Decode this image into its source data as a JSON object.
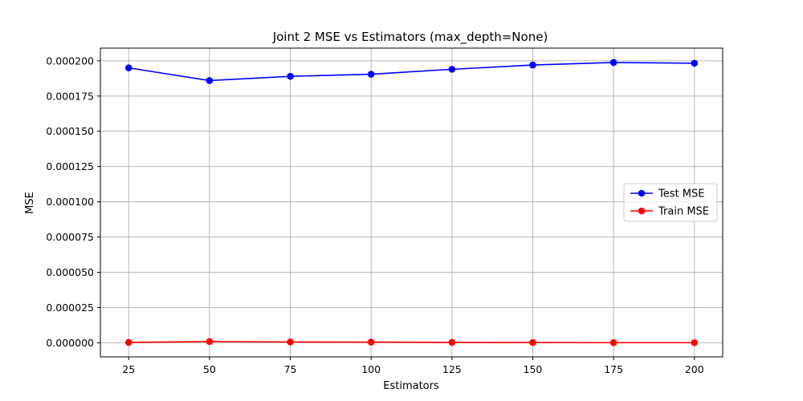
{
  "chart_data": {
    "type": "line",
    "title": "Joint 2 MSE vs Estimators (max_depth=None)",
    "xlabel": "Estimators",
    "ylabel": "MSE",
    "x": [
      25,
      50,
      75,
      100,
      125,
      150,
      175,
      200
    ],
    "xticks": [
      "25",
      "50",
      "75",
      "100",
      "125",
      "150",
      "175",
      "200"
    ],
    "yticks": [
      "0.000000",
      "0.000025",
      "0.000050",
      "0.000075",
      "0.000100",
      "0.000125",
      "0.000150",
      "0.000175",
      "0.000200"
    ],
    "xlim": [
      16.25,
      208.75
    ],
    "ylim": [
      -1e-05,
      0.000209
    ],
    "grid": true,
    "legend_position": "center-right",
    "series": [
      {
        "name": "Test MSE",
        "color": "#0000ff",
        "marker": "circle",
        "values": [
          0.000195,
          0.000186,
          0.000189,
          0.0001905,
          0.000194,
          0.000197,
          0.0001988,
          0.0001983
        ]
      },
      {
        "name": "Train MSE",
        "color": "#ff0000",
        "marker": "circle",
        "values": [
          3e-07,
          9e-07,
          6e-07,
          5e-07,
          3e-07,
          2e-07,
          1e-07,
          1e-07
        ]
      }
    ]
  }
}
